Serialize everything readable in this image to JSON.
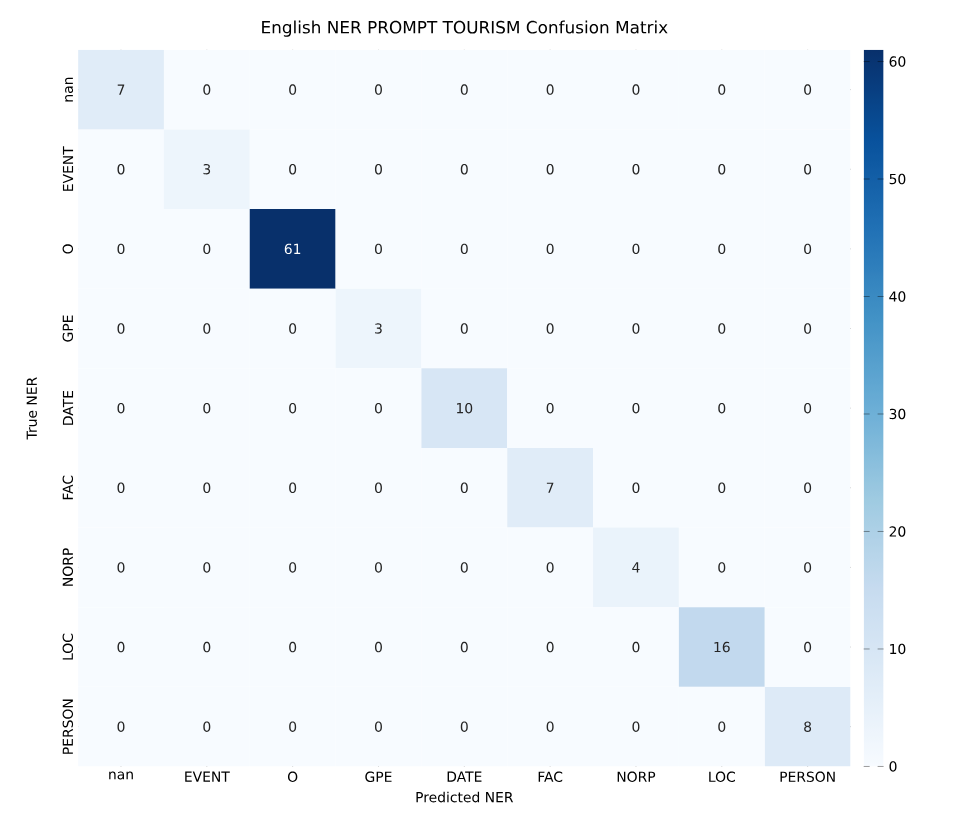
{
  "chart_data": {
    "type": "heatmap",
    "title": "English NER PROMPT TOURISM Confusion Matrix",
    "xlabel": "Predicted NER",
    "ylabel": "True NER",
    "categories": [
      "nan",
      "EVENT",
      "O",
      "GPE",
      "DATE",
      "FAC",
      "NORP",
      "LOC",
      "PERSON"
    ],
    "y_categories": [
      "nan",
      "EVENT",
      "O",
      "GPE",
      "DATE",
      "FAC",
      "NORP",
      "LOC",
      "PERSON"
    ],
    "cells": [
      [
        7,
        0,
        0,
        0,
        0,
        0,
        0,
        0,
        0
      ],
      [
        0,
        3,
        0,
        0,
        0,
        0,
        0,
        0,
        0
      ],
      [
        0,
        0,
        61,
        0,
        0,
        0,
        0,
        0,
        0
      ],
      [
        0,
        0,
        0,
        3,
        0,
        0,
        0,
        0,
        0
      ],
      [
        0,
        0,
        0,
        0,
        10,
        0,
        0,
        0,
        0
      ],
      [
        0,
        0,
        0,
        0,
        0,
        7,
        0,
        0,
        0
      ],
      [
        0,
        0,
        0,
        0,
        0,
        0,
        4,
        0,
        0
      ],
      [
        0,
        0,
        0,
        0,
        0,
        0,
        0,
        16,
        0
      ],
      [
        0,
        0,
        0,
        0,
        0,
        0,
        0,
        0,
        8
      ]
    ],
    "clim": [
      0,
      61
    ],
    "cticks": [
      0,
      10,
      20,
      30,
      40,
      50,
      60
    ],
    "data_labels": true
  }
}
